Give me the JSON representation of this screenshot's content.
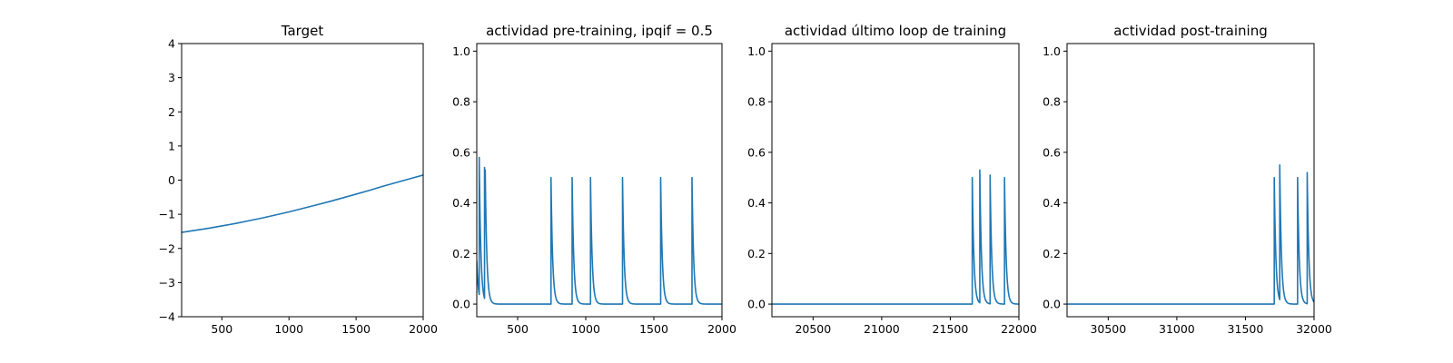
{
  "chart_data": [
    {
      "type": "line",
      "title": "Target",
      "xlabel": "",
      "ylabel": "",
      "xlim": [
        200,
        2000
      ],
      "ylim": [
        -4,
        4
      ],
      "xticks": [
        500,
        1000,
        1500,
        2000
      ],
      "yticks": [
        -4,
        -3,
        -2,
        -1,
        0,
        1,
        2,
        3,
        4
      ],
      "xtick_labels": [
        "500",
        "1000",
        "1500",
        "2000"
      ],
      "ytick_labels": [
        "−4",
        "−3",
        "−2",
        "−1",
        "0",
        "1",
        "2",
        "3",
        "4"
      ],
      "grid": false,
      "series": [
        {
          "color": "#1f77b4",
          "x": [
            200,
            300,
            400,
            500,
            600,
            700,
            800,
            900,
            1000,
            1100,
            1200,
            1300,
            1400,
            1500,
            1600,
            1700,
            1800,
            1900,
            2000
          ],
          "y": [
            -1.53,
            -1.47,
            -1.41,
            -1.34,
            -1.27,
            -1.19,
            -1.11,
            -1.02,
            -0.93,
            -0.83,
            -0.73,
            -0.63,
            -0.52,
            -0.41,
            -0.3,
            -0.18,
            -0.07,
            0.04,
            0.15
          ]
        }
      ]
    },
    {
      "type": "line",
      "title": "actividad pre-training, ipqif = 0.5",
      "xlabel": "",
      "ylabel": "",
      "xlim": [
        200,
        2000
      ],
      "ylim": [
        -0.05,
        1.03
      ],
      "xticks": [
        500,
        1000,
        1500,
        2000
      ],
      "yticks": [
        0.0,
        0.2,
        0.4,
        0.6,
        0.8,
        1.0
      ],
      "xtick_labels": [
        "500",
        "1000",
        "1500",
        "2000"
      ],
      "ytick_labels": [
        "0.0",
        "0.2",
        "0.4",
        "0.6",
        "0.8",
        "1.0"
      ],
      "grid": false,
      "series": [
        {
          "color": "#1f77b4",
          "spikes": [
            {
              "t": 200,
              "peak": 0.17
            },
            {
              "t": 218,
              "peak": 0.58
            },
            {
              "t": 257,
              "peak": 0.54
            },
            {
              "t": 262,
              "peak": 0.53
            },
            {
              "t": 745,
              "peak": 0.5
            },
            {
              "t": 900,
              "peak": 0.5
            },
            {
              "t": 1035,
              "peak": 0.5
            },
            {
              "t": 1270,
              "peak": 0.5
            },
            {
              "t": 1550,
              "peak": 0.5
            },
            {
              "t": 1780,
              "peak": 0.5
            }
          ]
        }
      ]
    },
    {
      "type": "line",
      "title": "actividad último loop de training",
      "xlabel": "",
      "ylabel": "",
      "xlim": [
        20200,
        22000
      ],
      "ylim": [
        -0.05,
        1.03
      ],
      "xticks": [
        20500,
        21000,
        21500,
        22000
      ],
      "yticks": [
        0.0,
        0.2,
        0.4,
        0.6,
        0.8,
        1.0
      ],
      "xtick_labels": [
        "20500",
        "21000",
        "21500",
        "22000"
      ],
      "ytick_labels": [
        "0.0",
        "0.2",
        "0.4",
        "0.6",
        "0.8",
        "1.0"
      ],
      "grid": false,
      "series": [
        {
          "color": "#1f77b4",
          "spikes": [
            {
              "t": 21660,
              "peak": 0.5
            },
            {
              "t": 21715,
              "peak": 0.53
            },
            {
              "t": 21790,
              "peak": 0.51
            },
            {
              "t": 21895,
              "peak": 0.5
            }
          ]
        }
      ]
    },
    {
      "type": "line",
      "title": "actividad post-training",
      "xlabel": "",
      "ylabel": "",
      "xlim": [
        30200,
        32000
      ],
      "ylim": [
        -0.05,
        1.03
      ],
      "xticks": [
        30500,
        31000,
        31500,
        32000
      ],
      "yticks": [
        0.0,
        0.2,
        0.4,
        0.6,
        0.8,
        1.0
      ],
      "xtick_labels": [
        "30500",
        "31000",
        "31500",
        "32000"
      ],
      "ytick_labels": [
        "0.0",
        "0.2",
        "0.4",
        "0.6",
        "0.8",
        "1.0"
      ],
      "grid": false,
      "series": [
        {
          "color": "#1f77b4",
          "spikes": [
            {
              "t": 31710,
              "peak": 0.5
            },
            {
              "t": 31750,
              "peak": 0.55
            },
            {
              "t": 31880,
              "peak": 0.5
            },
            {
              "t": 31950,
              "peak": 0.52
            }
          ]
        }
      ]
    }
  ]
}
